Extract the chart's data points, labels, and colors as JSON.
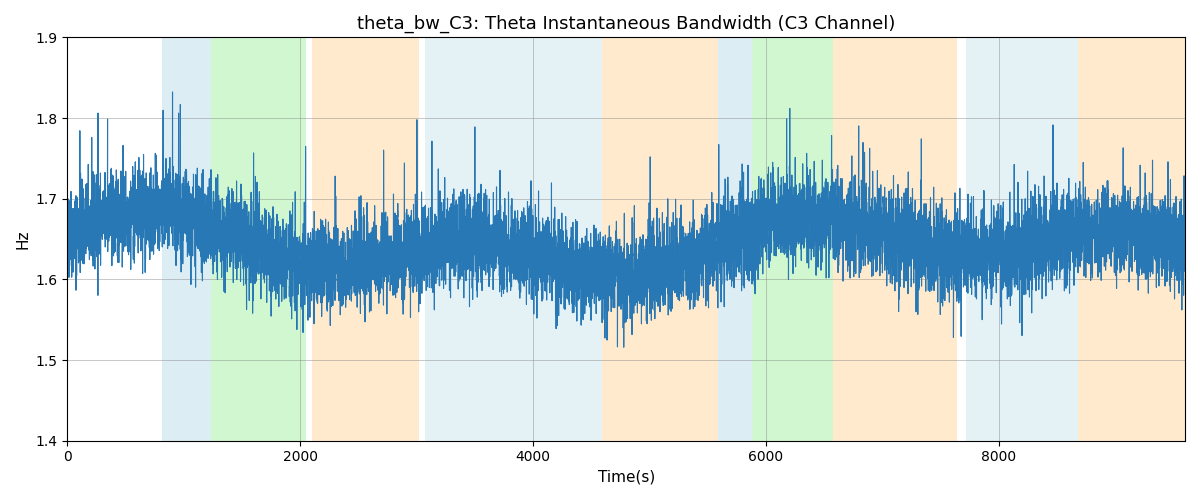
{
  "title": "theta_bw_C3: Theta Instantaneous Bandwidth (C3 Channel)",
  "xlabel": "Time(s)",
  "ylabel": "Hz",
  "ylim": [
    1.4,
    1.9
  ],
  "xlim": [
    0,
    9600
  ],
  "yticks": [
    1.4,
    1.5,
    1.6,
    1.7,
    1.8,
    1.9
  ],
  "xticks": [
    0,
    2000,
    4000,
    6000,
    8000
  ],
  "line_color": "#2878b5",
  "line_width": 0.8,
  "bg_bands": [
    {
      "xmin": 810,
      "xmax": 1230,
      "color": "#add8e6",
      "alpha": 0.42
    },
    {
      "xmin": 1230,
      "xmax": 2050,
      "color": "#90ee90",
      "alpha": 0.42
    },
    {
      "xmin": 2100,
      "xmax": 3020,
      "color": "#ffd8a0",
      "alpha": 0.52
    },
    {
      "xmin": 3070,
      "xmax": 4590,
      "color": "#add8e6",
      "alpha": 0.32
    },
    {
      "xmin": 4590,
      "xmax": 5590,
      "color": "#ffd8a0",
      "alpha": 0.52
    },
    {
      "xmin": 5590,
      "xmax": 5880,
      "color": "#add8e6",
      "alpha": 0.42
    },
    {
      "xmin": 5880,
      "xmax": 6580,
      "color": "#90ee90",
      "alpha": 0.42
    },
    {
      "xmin": 6580,
      "xmax": 7640,
      "color": "#ffd8a0",
      "alpha": 0.52
    },
    {
      "xmin": 7720,
      "xmax": 8680,
      "color": "#add8e6",
      "alpha": 0.32
    },
    {
      "xmin": 8680,
      "xmax": 9600,
      "color": "#ffd8a0",
      "alpha": 0.52
    }
  ],
  "seed": 42,
  "n_points": 9600,
  "base_hz": 1.64,
  "noise_std": 0.028,
  "slow_amp1": 0.025,
  "slow_period1": 2800,
  "slow_amp2": 0.018,
  "slow_period2": 6500,
  "spike_prob": 0.015,
  "spike_std": 0.07,
  "figsize": [
    12.0,
    5.0
  ],
  "dpi": 100
}
